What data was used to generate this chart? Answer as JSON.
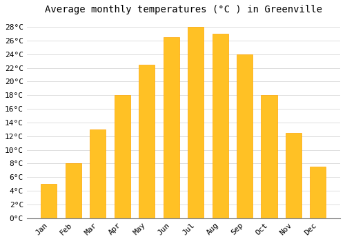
{
  "title": "Average monthly temperatures (°C ) in Greenville",
  "months": [
    "Jan",
    "Feb",
    "Mar",
    "Apr",
    "May",
    "Jun",
    "Jul",
    "Aug",
    "Sep",
    "Oct",
    "Nov",
    "Dec"
  ],
  "temperatures": [
    5.0,
    8.0,
    13.0,
    18.0,
    22.5,
    26.5,
    28.0,
    27.0,
    24.0,
    18.0,
    12.5,
    7.5
  ],
  "bar_color": "#FFC125",
  "bar_edge_color": "#FFA500",
  "background_color": "#FFFFFF",
  "grid_color": "#DDDDDD",
  "ylim": [
    0,
    29
  ],
  "ytick_step": 2,
  "title_fontsize": 10,
  "tick_fontsize": 8,
  "font_family": "monospace",
  "bar_width": 0.65
}
